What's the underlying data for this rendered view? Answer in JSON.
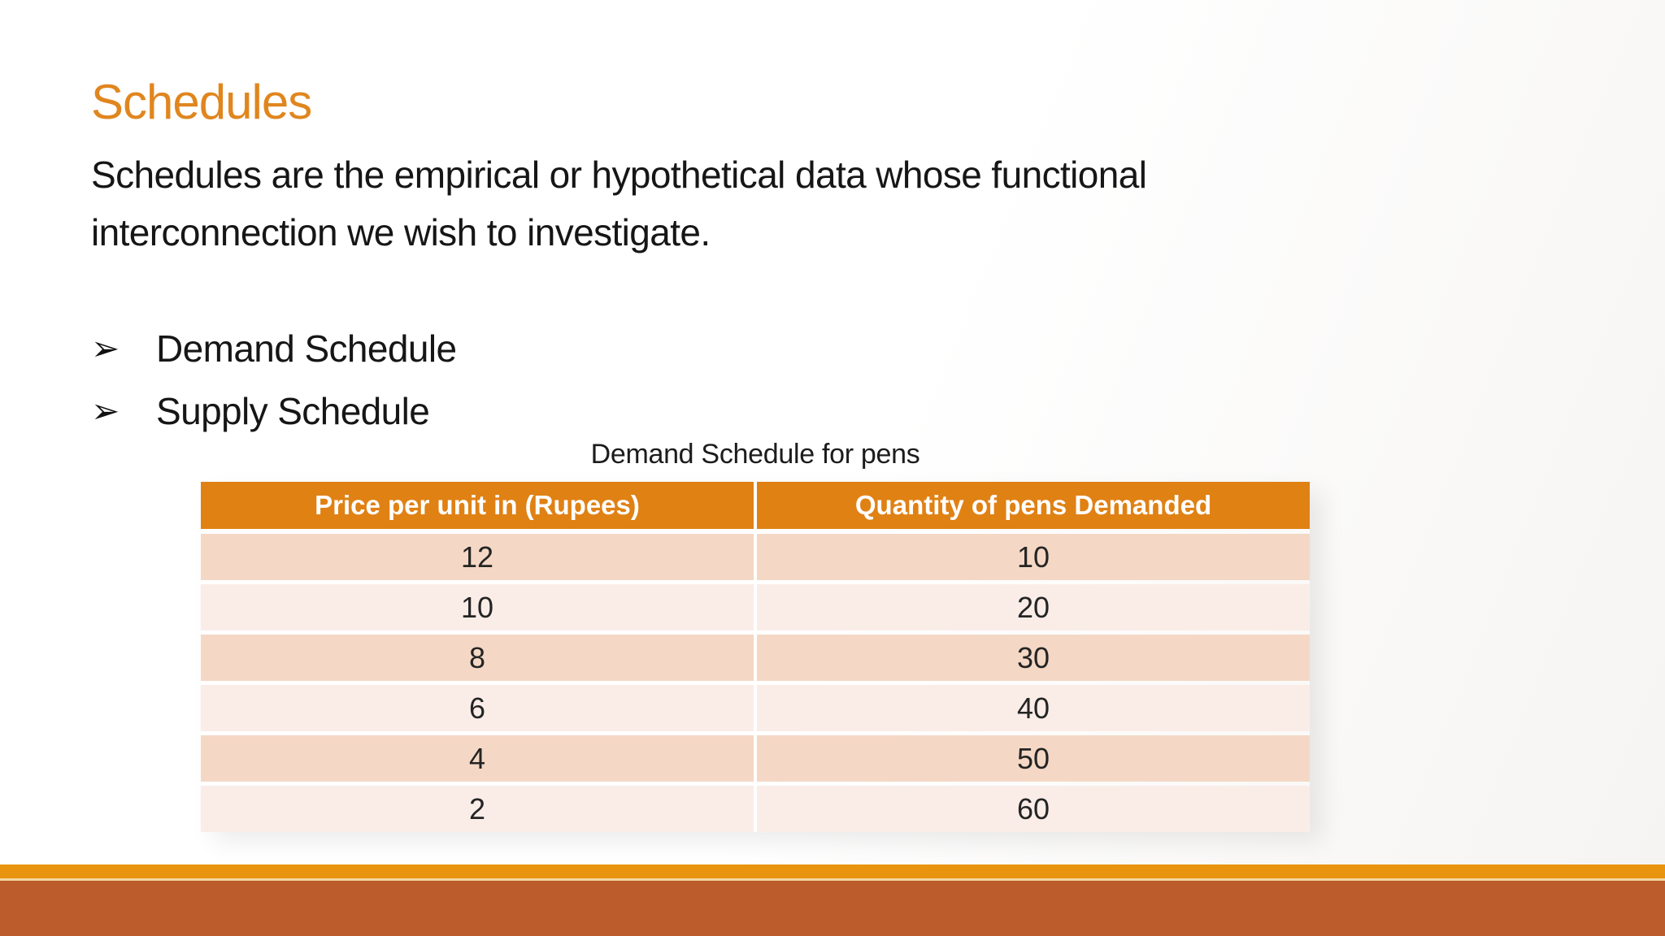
{
  "slide": {
    "title": "Schedules",
    "body_lines": [
      "Schedules are the empirical or hypothetical data whose functional",
      "interconnection we wish to investigate."
    ],
    "bullet_marker": "➢",
    "bullets": [
      "Demand Schedule",
      "Supply Schedule"
    ]
  },
  "table": {
    "caption": "Demand Schedule for pens",
    "columns": [
      "Price per unit in (Rupees)",
      "Quantity of pens Demanded"
    ],
    "rows": [
      [
        "12",
        "10"
      ],
      [
        "10",
        "20"
      ],
      [
        "8",
        "30"
      ],
      [
        "6",
        "40"
      ],
      [
        "4",
        "50"
      ],
      [
        "2",
        "60"
      ]
    ]
  },
  "colors": {
    "title_orange": "#E0861F",
    "table_header_bg": "#E08114",
    "table_header_text": "#FFFFFF",
    "row_dark": "#F4D8C5",
    "row_light": "#FAEDE8",
    "footer_bar_top": "#E8940F",
    "footer_bar_bottom": "#BC5B2B",
    "body_text": "#161616"
  }
}
